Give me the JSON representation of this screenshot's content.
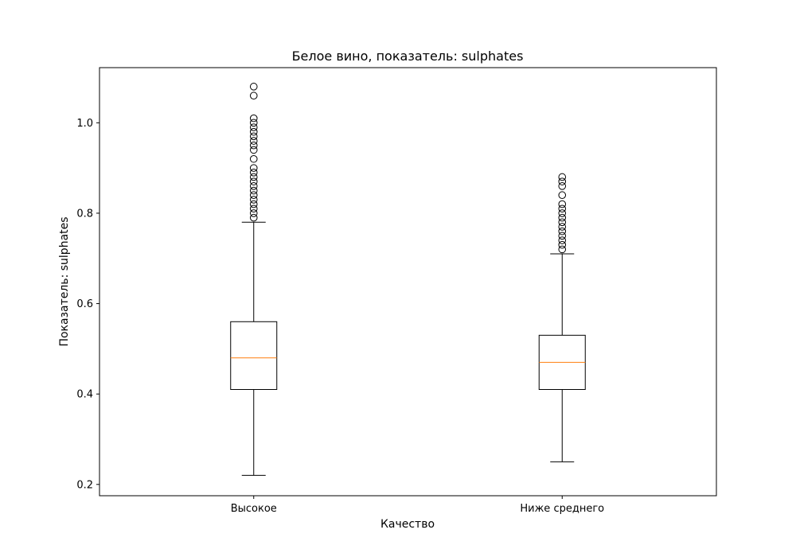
{
  "chart_data": {
    "type": "boxplot",
    "title": "Белое вино, показатель: sulphates",
    "xlabel": "Качество",
    "ylabel": "Показатель: sulphates",
    "ylim": [
      0.175,
      1.122
    ],
    "yticks": [
      "0.2",
      "0.4",
      "0.6",
      "0.8",
      "1.0"
    ],
    "yticks_values": [
      0.2,
      0.4,
      0.6,
      0.8,
      1.0
    ],
    "categories": [
      "Высокое",
      "Ниже среднего"
    ],
    "grid": false,
    "colors": {
      "box": "#000000",
      "median": "#ff7f0e",
      "outlier": "#000000"
    },
    "series": [
      {
        "whisker_low": 0.22,
        "q1": 0.41,
        "median": 0.48,
        "q3": 0.56,
        "whisker_high": 0.78,
        "outliers": [
          0.79,
          0.8,
          0.81,
          0.82,
          0.83,
          0.84,
          0.85,
          0.86,
          0.87,
          0.88,
          0.89,
          0.9,
          0.92,
          0.94,
          0.95,
          0.96,
          0.97,
          0.98,
          0.99,
          1.0,
          1.01,
          1.06,
          1.08
        ]
      },
      {
        "whisker_low": 0.25,
        "q1": 0.41,
        "median": 0.47,
        "q3": 0.53,
        "whisker_high": 0.71,
        "outliers": [
          0.72,
          0.73,
          0.74,
          0.75,
          0.76,
          0.77,
          0.78,
          0.79,
          0.8,
          0.81,
          0.82,
          0.84,
          0.86,
          0.87,
          0.88
        ]
      }
    ]
  }
}
